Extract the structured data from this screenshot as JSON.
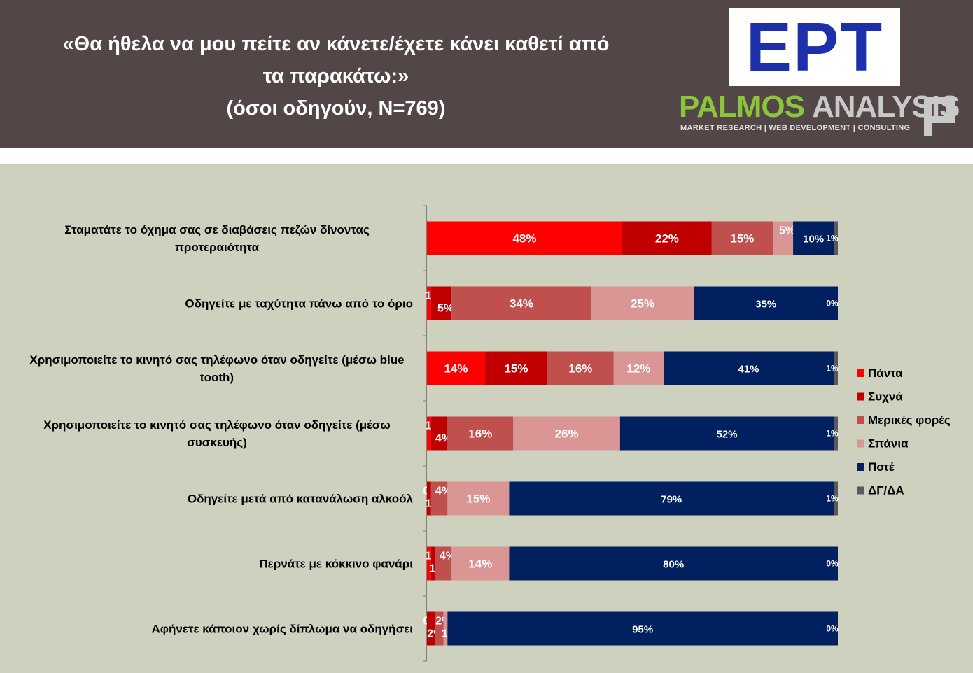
{
  "header": {
    "title_line1": "«Θα ήθελα να μου πείτε αν κάνετε/έχετε κάνει καθετί από",
    "title_line2": "τα παρακάτω:»",
    "subtitle": "(όσοι οδηγούν, Ν=769)"
  },
  "logos": {
    "ert": "ΕΡΤ",
    "palmos_part1": "PALMOS",
    "palmos_part2": "ANALYSIS",
    "palmos_tagline": "MARKET RESEARCH | WEB DEVELOPMENT | CONSULTING"
  },
  "colors": {
    "header_bg": "#524746",
    "chart_bg": "#cdd1be",
    "ert_blue": "#1e2faa",
    "palmos_green": "#8cc43c"
  },
  "chart_data": {
    "type": "bar",
    "orientation": "horizontal",
    "stacked": true,
    "title": "",
    "xlabel": "",
    "ylabel": "",
    "xlim": [
      0,
      100
    ],
    "legend_position": "right",
    "grid": false,
    "categories": [
      [
        "Σταματάτε το όχημα σας σε διαβάσεις πεζών δίνοντας",
        "προτεραιότητα"
      ],
      [
        "Οδηγείτε με ταχύτητα πάνω από το όριο"
      ],
      [
        "Χρησιμοποιείτε το κινητό σας τηλέφωνο όταν οδηγείτε (μέσω blue",
        "tooth)"
      ],
      [
        "Χρησιμοποιείτε το κινητό σας τηλέφωνο όταν οδηγείτε (μέσω",
        "συσκευής)"
      ],
      [
        "Οδηγείτε μετά από κατανάλωση αλκοόλ"
      ],
      [
        "Περνάτε με κόκκινο φανάρι"
      ],
      [
        "Αφήνετε κάποιον χωρίς δίπλωμα να οδηγήσει"
      ]
    ],
    "series": [
      {
        "name": "Πάντα",
        "color": "#ff0000",
        "values": [
          48,
          1,
          14,
          1,
          0,
          1,
          0
        ]
      },
      {
        "name": "Συχνά",
        "color": "#c00000",
        "values": [
          22,
          5,
          15,
          4,
          1,
          1,
          2
        ]
      },
      {
        "name": "Μερικές φορές",
        "color": "#c0504d",
        "values": [
          15,
          34,
          16,
          16,
          4,
          4,
          2
        ]
      },
      {
        "name": "Σπάνια",
        "color": "#d99694",
        "values": [
          5,
          25,
          12,
          26,
          15,
          14,
          1
        ]
      },
      {
        "name": "Ποτέ",
        "color": "#002060",
        "values": [
          10,
          35,
          41,
          52,
          79,
          80,
          95
        ]
      },
      {
        "name": "ΔΓ/ΔΑ",
        "color": "#595959",
        "values": [
          1,
          0,
          1,
          1,
          1,
          0,
          0
        ]
      }
    ]
  }
}
